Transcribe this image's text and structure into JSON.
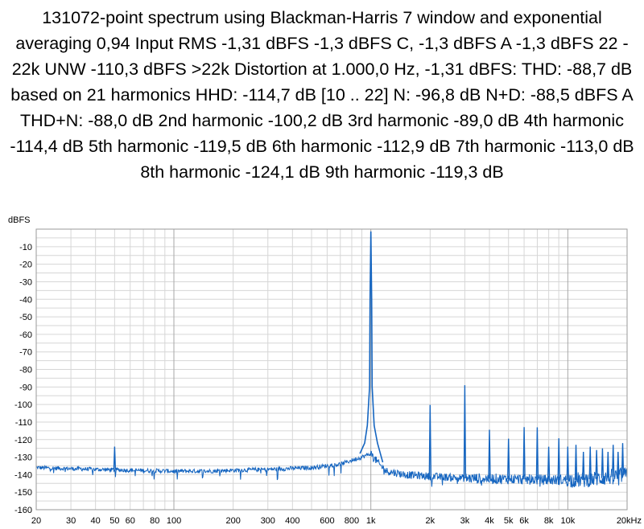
{
  "title": "131072-point spectrum using Blackman-Harris 7 window and exponential averaging 0,94 Input RMS -1,31 dBFS -1,3 dBFS C, -1,3 dBFS A -1,3 dBFS 22 - 22k UNW -110,3 dBFS >22k Distortion at 1.000,0 Hz, -1,31 dBFS: THD: -88,7 dB based on 21 harmonics HHD: -114,7 dB [10 .. 22] N: -96,8 dB N+D: -88,5 dBFS A THD+N: -88,0 dB 2nd harmonic -100,2 dB 3rd harmonic -89,0 dB 4th harmonic -114,4 dB 5th harmonic -119,5 dB 6th harmonic -112,9 dB 7th harmonic -113,0 dB 8th harmonic -124,1 dB 9th harmonic -119,3 dB",
  "colors": {
    "trace": "#1565c0",
    "grid_minor": "#d6d6d6",
    "grid_major": "#a8a8a8",
    "frame": "#9a9a9a",
    "text": "#000000"
  },
  "chart_data": {
    "type": "line",
    "x_scale": "log",
    "xlim": [
      20,
      20000
    ],
    "ylim": [
      -160,
      0
    ],
    "grid": true,
    "ylabel": "dBFS",
    "y_ticks": [
      -10,
      -20,
      -30,
      -40,
      -50,
      -60,
      -70,
      -80,
      -90,
      -100,
      -110,
      -120,
      -130,
      -140,
      -150,
      -160
    ],
    "x_ticks": [
      {
        "value": 20,
        "label": "20"
      },
      {
        "value": 30,
        "label": "30"
      },
      {
        "value": 40,
        "label": "40"
      },
      {
        "value": 50,
        "label": "50"
      },
      {
        "value": 60,
        "label": "60"
      },
      {
        "value": 80,
        "label": "80"
      },
      {
        "value": 100,
        "label": "100"
      },
      {
        "value": 200,
        "label": "200"
      },
      {
        "value": 300,
        "label": "300"
      },
      {
        "value": 400,
        "label": "400"
      },
      {
        "value": 600,
        "label": "600"
      },
      {
        "value": 800,
        "label": "800"
      },
      {
        "value": 1000,
        "label": "1k"
      },
      {
        "value": 2000,
        "label": "2k"
      },
      {
        "value": 3000,
        "label": "3k"
      },
      {
        "value": 4000,
        "label": "4k"
      },
      {
        "value": 5000,
        "label": "5k"
      },
      {
        "value": 6000,
        "label": "6k"
      },
      {
        "value": 8000,
        "label": "8k"
      },
      {
        "value": 10000,
        "label": "10k"
      },
      {
        "value": 20000,
        "label": "20kHz"
      }
    ],
    "series": [
      {
        "noise_floor": [
          [
            20,
            -136
          ],
          [
            40,
            -137
          ],
          [
            60,
            -137.5
          ],
          [
            100,
            -138
          ],
          [
            150,
            -138
          ],
          [
            200,
            -137.5
          ],
          [
            300,
            -137
          ],
          [
            500,
            -136
          ],
          [
            700,
            -134
          ],
          [
            900,
            -130
          ],
          [
            1000,
            -128
          ],
          [
            1100,
            -134
          ],
          [
            1200,
            -138
          ],
          [
            1500,
            -140
          ],
          [
            2000,
            -141
          ],
          [
            3000,
            -142
          ],
          [
            5000,
            -142.5
          ],
          [
            8000,
            -143
          ],
          [
            12000,
            -143
          ],
          [
            15000,
            -142
          ],
          [
            20000,
            -140
          ]
        ],
        "peaks": [
          {
            "x": 50,
            "y": -124
          },
          {
            "x": 1000,
            "y": -1.31
          },
          {
            "x": 2000,
            "y": -100.2
          },
          {
            "x": 3000,
            "y": -89.0
          },
          {
            "x": 4000,
            "y": -114.4
          },
          {
            "x": 5000,
            "y": -119.5
          },
          {
            "x": 6000,
            "y": -112.9
          },
          {
            "x": 7000,
            "y": -113.0
          },
          {
            "x": 8000,
            "y": -124.1
          },
          {
            "x": 9000,
            "y": -119.3
          },
          {
            "x": 10000,
            "y": -124
          },
          {
            "x": 11000,
            "y": -123
          },
          {
            "x": 12000,
            "y": -127
          },
          {
            "x": 13000,
            "y": -124
          },
          {
            "x": 14000,
            "y": -126
          },
          {
            "x": 15000,
            "y": -125
          },
          {
            "x": 16000,
            "y": -127
          },
          {
            "x": 17000,
            "y": -123
          },
          {
            "x": 18000,
            "y": -127
          },
          {
            "x": 19000,
            "y": -122
          }
        ]
      }
    ]
  }
}
